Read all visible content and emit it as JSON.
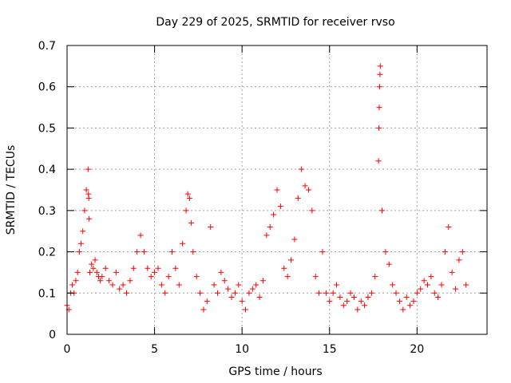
{
  "chart_data": {
    "type": "scatter",
    "title": "Day 229 of 2025, SRMTID for receiver rvso",
    "xlabel": "GPS time / hours",
    "ylabel": "SRMTID / TECUs",
    "xlim": [
      0,
      24
    ],
    "ylim": [
      0,
      0.7
    ],
    "x_ticks": [
      0,
      5,
      10,
      15,
      20
    ],
    "x_tick_labels": [
      "0",
      "5",
      "10",
      "15",
      "20"
    ],
    "y_ticks": [
      0,
      0.1,
      0.2,
      0.3,
      0.4,
      0.5,
      0.6,
      0.7
    ],
    "y_tick_labels": [
      "0",
      "0.1",
      "0.2",
      "0.3",
      "0.4",
      "0.5",
      "0.6",
      "0.7"
    ],
    "grid": true,
    "marker": "+",
    "marker_color": "#ff0000",
    "series": [
      {
        "name": "rvso",
        "x": [
          0.0,
          0.1,
          0.2,
          0.3,
          0.4,
          0.5,
          0.6,
          0.7,
          0.8,
          0.9,
          1.0,
          1.1,
          1.2,
          1.22,
          1.24,
          1.26,
          1.3,
          1.4,
          1.5,
          1.6,
          1.7,
          1.8,
          1.9,
          2.0,
          2.2,
          2.4,
          2.6,
          2.8,
          3.0,
          3.2,
          3.4,
          3.6,
          3.8,
          4.0,
          4.2,
          4.4,
          4.6,
          4.8,
          5.0,
          5.2,
          5.4,
          5.6,
          5.8,
          6.0,
          6.2,
          6.4,
          6.6,
          6.8,
          6.9,
          7.0,
          7.1,
          7.2,
          7.4,
          7.6,
          7.8,
          8.0,
          8.2,
          8.4,
          8.6,
          8.8,
          9.0,
          9.2,
          9.4,
          9.6,
          9.8,
          10.0,
          10.2,
          10.4,
          10.6,
          10.8,
          11.0,
          11.2,
          11.4,
          11.6,
          11.8,
          12.0,
          12.2,
          12.4,
          12.6,
          12.8,
          13.0,
          13.2,
          13.4,
          13.6,
          13.8,
          14.0,
          14.2,
          14.4,
          14.6,
          14.8,
          15.0,
          15.2,
          15.4,
          15.6,
          15.8,
          16.0,
          16.2,
          16.4,
          16.6,
          16.8,
          17.0,
          17.2,
          17.4,
          17.6,
          17.8,
          17.82,
          17.84,
          17.86,
          17.88,
          17.9,
          18.0,
          18.2,
          18.4,
          18.6,
          18.8,
          19.0,
          19.2,
          19.4,
          19.6,
          19.8,
          20.0,
          20.2,
          20.4,
          20.6,
          20.8,
          21.0,
          21.2,
          21.4,
          21.6,
          21.8,
          22.0,
          22.2,
          22.4,
          22.6,
          22.8
        ],
        "y": [
          0.07,
          0.06,
          0.1,
          0.12,
          0.1,
          0.13,
          0.15,
          0.2,
          0.22,
          0.25,
          0.3,
          0.35,
          0.4,
          0.34,
          0.33,
          0.28,
          0.15,
          0.17,
          0.16,
          0.18,
          0.15,
          0.14,
          0.13,
          0.14,
          0.16,
          0.13,
          0.12,
          0.15,
          0.11,
          0.12,
          0.1,
          0.13,
          0.16,
          0.2,
          0.24,
          0.2,
          0.16,
          0.14,
          0.15,
          0.16,
          0.12,
          0.1,
          0.14,
          0.2,
          0.16,
          0.12,
          0.22,
          0.3,
          0.34,
          0.33,
          0.27,
          0.2,
          0.14,
          0.1,
          0.06,
          0.08,
          0.26,
          0.12,
          0.1,
          0.15,
          0.13,
          0.11,
          0.09,
          0.1,
          0.12,
          0.08,
          0.06,
          0.1,
          0.11,
          0.12,
          0.09,
          0.13,
          0.24,
          0.26,
          0.29,
          0.35,
          0.31,
          0.16,
          0.14,
          0.18,
          0.23,
          0.33,
          0.4,
          0.36,
          0.35,
          0.3,
          0.14,
          0.1,
          0.2,
          0.1,
          0.08,
          0.1,
          0.12,
          0.09,
          0.07,
          0.08,
          0.1,
          0.09,
          0.06,
          0.08,
          0.07,
          0.09,
          0.1,
          0.14,
          0.42,
          0.5,
          0.55,
          0.6,
          0.63,
          0.65,
          0.3,
          0.2,
          0.17,
          0.12,
          0.1,
          0.08,
          0.06,
          0.09,
          0.07,
          0.08,
          0.1,
          0.11,
          0.13,
          0.12,
          0.14,
          0.1,
          0.09,
          0.12,
          0.2,
          0.26,
          0.15,
          0.11,
          0.18,
          0.2,
          0.12
        ]
      }
    ]
  }
}
